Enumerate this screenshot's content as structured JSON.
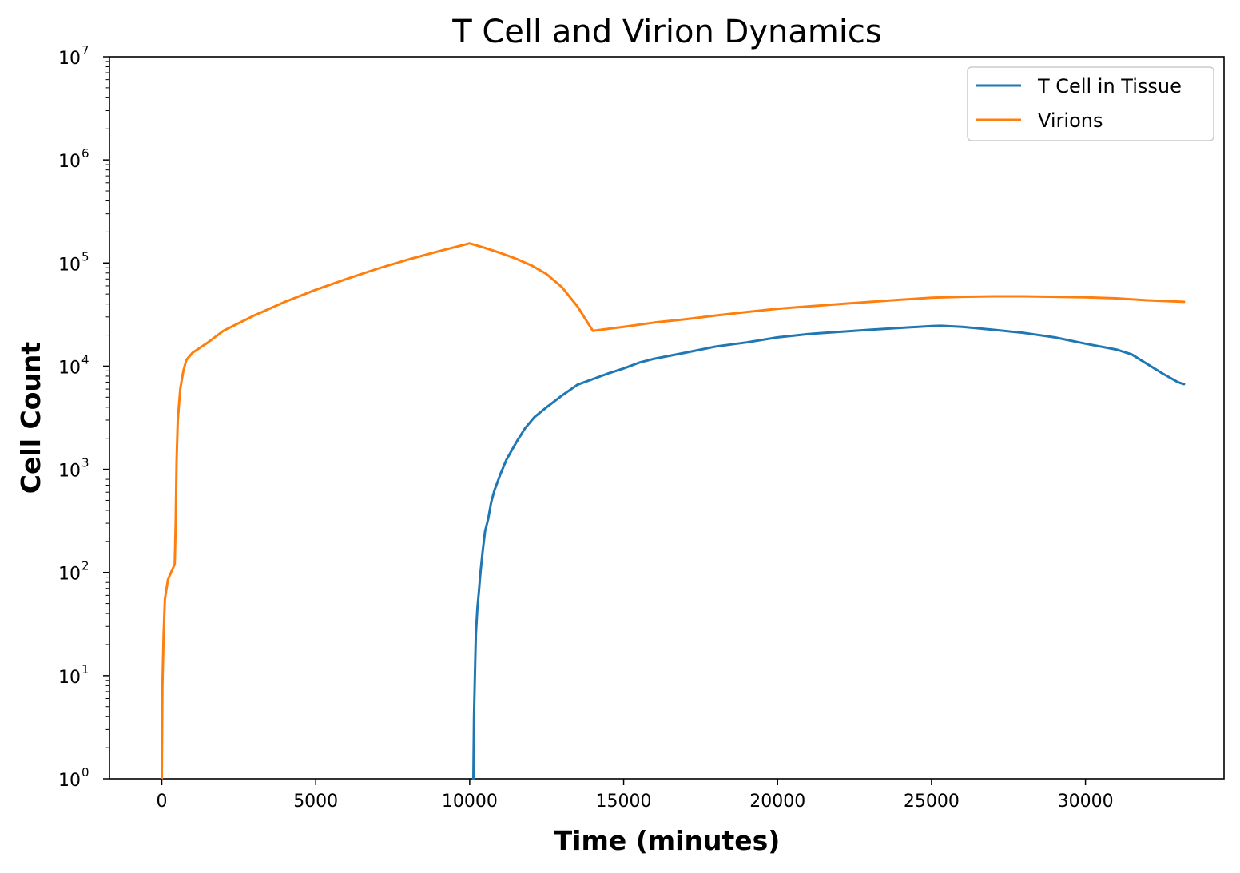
{
  "chart_data": {
    "type": "line",
    "title": "T Cell and Virion Dynamics",
    "xlabel": "Time (minutes)",
    "ylabel": "Cell Count",
    "xlim": [
      -1700,
      34500
    ],
    "ylim": [
      1,
      10000000
    ],
    "yscale": "log",
    "xticks": [
      0,
      5000,
      10000,
      15000,
      20000,
      25000,
      30000
    ],
    "yticks": [
      {
        "base": "10",
        "exp": "0",
        "value": 1
      },
      {
        "base": "10",
        "exp": "1",
        "value": 10
      },
      {
        "base": "10",
        "exp": "2",
        "value": 100
      },
      {
        "base": "10",
        "exp": "3",
        "value": 1000
      },
      {
        "base": "10",
        "exp": "4",
        "value": 10000
      },
      {
        "base": "10",
        "exp": "5",
        "value": 100000
      },
      {
        "base": "10",
        "exp": "6",
        "value": 1000000
      },
      {
        "base": "10",
        "exp": "7",
        "value": 10000000
      }
    ],
    "grid": false,
    "legend_position": "top-right",
    "series": [
      {
        "name": "T Cell in Tissue",
        "color": "#1f77b4",
        "points": [
          [
            10120,
            1
          ],
          [
            10140,
            4
          ],
          [
            10170,
            10
          ],
          [
            10200,
            25
          ],
          [
            10250,
            45
          ],
          [
            10300,
            65
          ],
          [
            10350,
            100
          ],
          [
            10420,
            160
          ],
          [
            10500,
            250
          ],
          [
            10600,
            330
          ],
          [
            10700,
            480
          ],
          [
            10800,
            620
          ],
          [
            11000,
            900
          ],
          [
            11200,
            1250
          ],
          [
            11500,
            1800
          ],
          [
            11800,
            2500
          ],
          [
            12100,
            3200
          ],
          [
            12500,
            4000
          ],
          [
            13000,
            5200
          ],
          [
            13500,
            6600
          ],
          [
            14000,
            7500
          ],
          [
            14500,
            8500
          ],
          [
            15000,
            9500
          ],
          [
            15500,
            10800
          ],
          [
            16000,
            11800
          ],
          [
            17000,
            13500
          ],
          [
            18000,
            15500
          ],
          [
            19000,
            17000
          ],
          [
            20000,
            19000
          ],
          [
            21000,
            20500
          ],
          [
            22000,
            21500
          ],
          [
            23000,
            22500
          ],
          [
            24000,
            23500
          ],
          [
            25000,
            24500
          ],
          [
            25300,
            24600
          ],
          [
            26000,
            24000
          ],
          [
            27000,
            22500
          ],
          [
            28000,
            21000
          ],
          [
            29000,
            19000
          ],
          [
            30000,
            16500
          ],
          [
            31000,
            14500
          ],
          [
            31500,
            13000
          ],
          [
            32000,
            10500
          ],
          [
            32500,
            8500
          ],
          [
            33000,
            7000
          ],
          [
            33200,
            6700
          ]
        ]
      },
      {
        "name": "Virions",
        "color": "#ff7f0e",
        "points": [
          [
            0,
            1
          ],
          [
            20,
            8
          ],
          [
            60,
            25
          ],
          [
            100,
            55
          ],
          [
            200,
            85
          ],
          [
            300,
            100
          ],
          [
            420,
            120
          ],
          [
            450,
            300
          ],
          [
            480,
            1200
          ],
          [
            520,
            3000
          ],
          [
            600,
            6000
          ],
          [
            700,
            9000
          ],
          [
            800,
            11500
          ],
          [
            1000,
            13500
          ],
          [
            1500,
            17000
          ],
          [
            2000,
            22000
          ],
          [
            3000,
            31000
          ],
          [
            4000,
            42000
          ],
          [
            5000,
            55000
          ],
          [
            6000,
            70000
          ],
          [
            7000,
            88000
          ],
          [
            8000,
            108000
          ],
          [
            9000,
            130000
          ],
          [
            10000,
            155000
          ],
          [
            10500,
            140000
          ],
          [
            11000,
            125000
          ],
          [
            11500,
            110000
          ],
          [
            12000,
            95000
          ],
          [
            12500,
            78000
          ],
          [
            13000,
            58000
          ],
          [
            13500,
            38000
          ],
          [
            14000,
            22000
          ],
          [
            15000,
            24000
          ],
          [
            16000,
            26500
          ],
          [
            17000,
            28500
          ],
          [
            18000,
            31000
          ],
          [
            19000,
            33500
          ],
          [
            20000,
            36000
          ],
          [
            22000,
            40000
          ],
          [
            24000,
            44000
          ],
          [
            25000,
            46000
          ],
          [
            26000,
            47000
          ],
          [
            27000,
            47500
          ],
          [
            28000,
            47500
          ],
          [
            29000,
            47000
          ],
          [
            30000,
            46500
          ],
          [
            31000,
            45500
          ],
          [
            32000,
            43500
          ],
          [
            33200,
            42000
          ]
        ]
      }
    ]
  }
}
